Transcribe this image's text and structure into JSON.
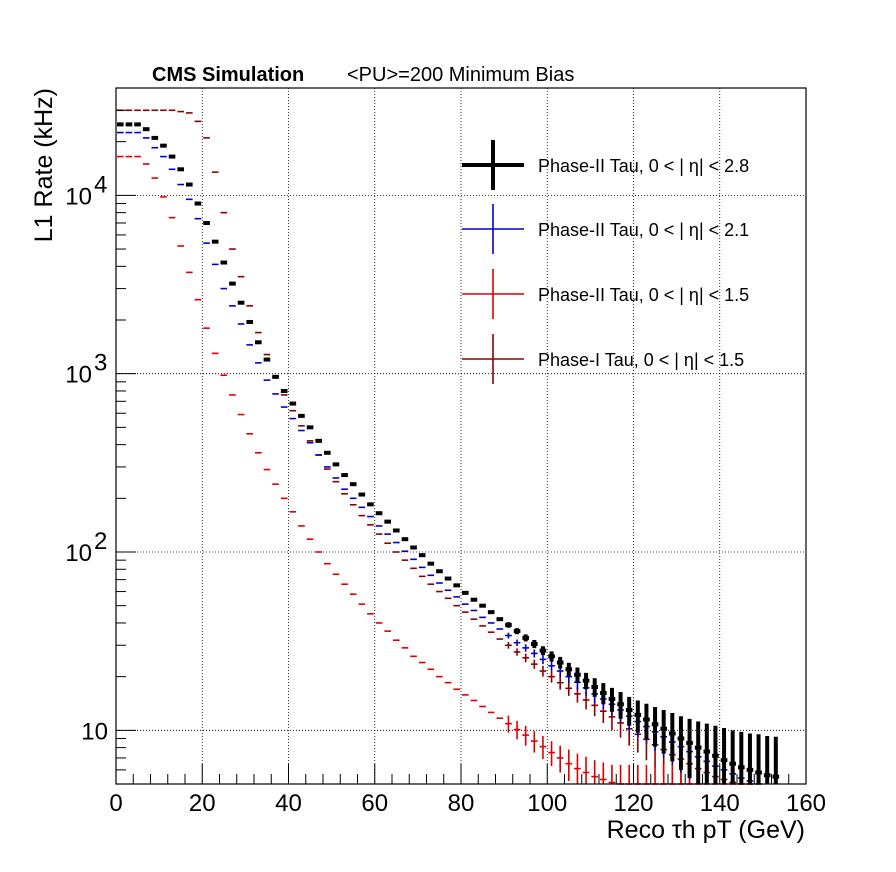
{
  "header": {
    "experiment": "CMS Simulation",
    "conditions": "<PU>=200  Minimum Bias"
  },
  "chart_data": {
    "type": "scatter",
    "xlabel": "Reco τh pT (GeV)",
    "ylabel": "L1 Rate (kHz)",
    "xlim": [
      0,
      160
    ],
    "ylim": [
      5,
      40000
    ],
    "yscale": "log",
    "grid": true,
    "legend_position": "top-right",
    "x_ticks": [
      "0",
      "20",
      "40",
      "60",
      "80",
      "100",
      "120",
      "140",
      "160"
    ],
    "y_ticks": [
      {
        "value": 10,
        "label": "10"
      },
      {
        "value": 100,
        "label": "10",
        "exp": "2"
      },
      {
        "value": 1000,
        "label": "10",
        "exp": "3"
      },
      {
        "value": 10000,
        "label": "10",
        "exp": "4"
      }
    ],
    "bin_width": 2,
    "series": [
      {
        "name": "Phase-II Tau, 0 < | η| < 2.8",
        "color": "#000000",
        "x": [
          1,
          3,
          5,
          7,
          9,
          11,
          13,
          15,
          17,
          19,
          21,
          23,
          25,
          27,
          29,
          31,
          33,
          35,
          37,
          39,
          41,
          43,
          45,
          47,
          49,
          51,
          53,
          55,
          57,
          59,
          61,
          63,
          65,
          67,
          69,
          71,
          73,
          75,
          77,
          79,
          81,
          83,
          85,
          87,
          89,
          91,
          93,
          95,
          97,
          99,
          101,
          103,
          105,
          107,
          109,
          111,
          113,
          115,
          117,
          119,
          121,
          123,
          125,
          127,
          129,
          131,
          133,
          135,
          137,
          139,
          141,
          143,
          145,
          147,
          149,
          151,
          153
        ],
        "y": [
          25000,
          25000,
          25000,
          23500,
          21000,
          19000,
          16500,
          14000,
          11500,
          9000,
          7000,
          5500,
          4200,
          3200,
          2500,
          1950,
          1500,
          1200,
          960,
          800,
          680,
          580,
          500,
          420,
          360,
          310,
          270,
          240,
          210,
          185,
          165,
          148,
          132,
          118,
          106,
          96,
          86,
          78,
          71,
          65,
          59,
          54,
          50,
          46,
          42,
          39,
          36,
          33,
          30.5,
          28,
          26,
          24,
          22,
          20.5,
          19,
          17.5,
          16.2,
          15,
          14,
          13,
          12.2,
          11.5,
          10.8,
          10.2,
          9.6,
          9.0,
          8.5,
          8.0,
          7.6,
          7.2,
          6.8,
          6.5,
          6.2,
          6.0,
          5.8,
          5.6,
          5.5
        ],
        "err": [
          0,
          0,
          0,
          0,
          0,
          0,
          0,
          0,
          0,
          0,
          0,
          0,
          0,
          0,
          0,
          0,
          0,
          0,
          0,
          0,
          0,
          0,
          0,
          0,
          0,
          0,
          0,
          0,
          0,
          0,
          0,
          0,
          0,
          0,
          0,
          0,
          0,
          0,
          0,
          0,
          0,
          0,
          0,
          0,
          0,
          1.4,
          1.4,
          1.5,
          1.6,
          1.6,
          1.7,
          1.8,
          1.9,
          2.0,
          2.0,
          2.1,
          2.2,
          2.3,
          2.4,
          2.4,
          2.5,
          2.6,
          2.7,
          2.8,
          2.9,
          3.0,
          3.1,
          3.2,
          3.3,
          3.4,
          3.5,
          3.5,
          3.6,
          3.6,
          3.7,
          3.7,
          3.7
        ]
      },
      {
        "name": "Phase-II Tau, 0 < | η| < 2.1",
        "color": "#0000cc",
        "x": [
          1,
          3,
          5,
          7,
          9,
          11,
          13,
          15,
          17,
          19,
          21,
          23,
          25,
          27,
          29,
          31,
          33,
          35,
          37,
          39,
          41,
          43,
          45,
          47,
          49,
          51,
          53,
          55,
          57,
          59,
          61,
          63,
          65,
          67,
          69,
          71,
          73,
          75,
          77,
          79,
          81,
          83,
          85,
          87,
          89,
          91,
          93,
          95,
          97,
          99,
          101,
          103,
          105,
          107,
          109,
          111,
          113,
          115,
          117,
          119,
          121,
          123,
          125,
          127,
          129,
          131,
          133,
          135,
          137,
          139,
          141,
          143,
          145,
          147,
          149
        ],
        "y": [
          22500,
          22500,
          22500,
          21000,
          18500,
          16500,
          14000,
          11500,
          9500,
          7400,
          5400,
          4100,
          3000,
          2400,
          1900,
          1450,
          1150,
          920,
          770,
          650,
          560,
          480,
          410,
          350,
          300,
          260,
          225,
          200,
          178,
          158,
          140,
          126,
          113,
          101,
          91,
          82,
          74,
          67,
          61,
          56,
          51,
          47,
          43,
          40,
          37,
          34,
          31,
          29,
          27,
          25,
          23,
          21.5,
          20,
          18.6,
          17.3,
          16,
          15,
          14,
          13,
          12,
          11.2,
          10.5,
          9.8,
          9.2,
          8.6,
          8.1,
          7.6,
          7.1,
          6.7,
          6.3,
          6.0,
          5.7,
          5.4,
          5.2,
          5.0
        ],
        "err": [
          0,
          0,
          0,
          0,
          0,
          0,
          0,
          0,
          0,
          0,
          0,
          0,
          0,
          0,
          0,
          0,
          0,
          0,
          0,
          0,
          0,
          0,
          0,
          0,
          0,
          0,
          0,
          0,
          0,
          0,
          0,
          0,
          0,
          0,
          0,
          0,
          0,
          0,
          0,
          0,
          0,
          0,
          0,
          0,
          0,
          1.3,
          1.3,
          1.4,
          1.4,
          1.5,
          1.5,
          1.6,
          1.6,
          1.7,
          1.7,
          1.8,
          1.8,
          1.9,
          1.9,
          2.0,
          2.0,
          2.1,
          2.1,
          2.2,
          2.2,
          2.3,
          2.3,
          2.4,
          2.4,
          2.5,
          2.5,
          2.5,
          2.5,
          2.5,
          2.5
        ]
      },
      {
        "name": "Phase-II Tau, 0 < | η| < 1.5",
        "color": "#e00000",
        "x": [
          1,
          3,
          5,
          7,
          9,
          11,
          13,
          15,
          17,
          19,
          21,
          23,
          25,
          27,
          29,
          31,
          33,
          35,
          37,
          39,
          41,
          43,
          45,
          47,
          49,
          51,
          53,
          55,
          57,
          59,
          61,
          63,
          65,
          67,
          69,
          71,
          73,
          75,
          77,
          79,
          81,
          83,
          85,
          87,
          89,
          91,
          93,
          95,
          97,
          99,
          101,
          103,
          105,
          107,
          109,
          111,
          113,
          115,
          117,
          119,
          121,
          123,
          125,
          127,
          129,
          131,
          133,
          135,
          137,
          139,
          141,
          143,
          145,
          147
        ],
        "y": [
          16500,
          16500,
          16500,
          15000,
          12500,
          9800,
          7500,
          5200,
          3700,
          2600,
          1800,
          1300,
          980,
          760,
          590,
          460,
          360,
          290,
          240,
          200,
          168,
          140,
          118,
          100,
          86,
          75,
          66,
          58,
          51,
          45,
          40,
          36,
          32,
          29,
          26,
          24,
          22,
          20,
          18.5,
          17,
          15.8,
          14.7,
          13.6,
          12.6,
          11.7,
          10.9,
          10.1,
          9.4,
          8.7,
          8.1,
          7.5,
          7.0,
          6.5,
          6.1,
          5.8,
          5.5,
          5.3,
          5.1,
          5.0,
          5.0,
          5.0,
          5.0,
          5.0,
          5.0,
          5.0,
          5.0,
          5.0,
          5.0,
          5.0,
          5.0,
          5.0,
          5.0,
          5.0,
          5.0
        ],
        "err": [
          0,
          0,
          0,
          0,
          0,
          0,
          0,
          0,
          0,
          0,
          0,
          0,
          0,
          0,
          0,
          0,
          0,
          0,
          0,
          0,
          0,
          0,
          0,
          0,
          0,
          0,
          0,
          0,
          0,
          0,
          0,
          0,
          0,
          0,
          0,
          0,
          0,
          0,
          0,
          0,
          0,
          0,
          0,
          0,
          0,
          1.2,
          1.2,
          1.2,
          1.2,
          1.2,
          1.2,
          1.2,
          1.3,
          1.3,
          1.3,
          1.3,
          1.3,
          1.3,
          1.4,
          1.4,
          1.4,
          1.4,
          1.4,
          1.4,
          1.5,
          1.5,
          1.5,
          1.5,
          1.5,
          1.5,
          1.5,
          1.5,
          1.5,
          1.5
        ]
      },
      {
        "name": "Phase-I Tau, 0 < | η| < 1.5",
        "color": "#8b0000",
        "x": [
          1,
          3,
          5,
          7,
          9,
          11,
          13,
          15,
          17,
          19,
          21,
          23,
          25,
          27,
          29,
          31,
          33,
          35,
          37,
          39,
          41,
          43,
          45,
          47,
          49,
          51,
          53,
          55,
          57,
          59,
          61,
          63,
          65,
          67,
          69,
          71,
          73,
          75,
          77,
          79,
          81,
          83,
          85,
          87,
          89,
          91,
          93,
          95,
          97,
          99,
          101,
          103,
          105,
          107,
          109,
          111,
          113,
          115,
          117,
          119,
          121,
          123,
          125,
          127,
          129,
          131,
          133,
          135,
          137,
          139,
          141,
          143,
          145,
          147
        ],
        "y": [
          30000,
          30000,
          30000,
          30000,
          30000,
          30000,
          30000,
          29500,
          29000,
          26000,
          21000,
          13500,
          8000,
          5000,
          3500,
          2400,
          1700,
          1280,
          960,
          760,
          620,
          510,
          420,
          350,
          292,
          248,
          212,
          184,
          160,
          142,
          126,
          112,
          100,
          90,
          81,
          73,
          66,
          60,
          55,
          50,
          46,
          42,
          38.5,
          35.5,
          32.5,
          30,
          27.5,
          25.5,
          23.5,
          21.5,
          20,
          18.5,
          17.2,
          16,
          14.8,
          13.8,
          12.8,
          11.9,
          11,
          10.2,
          9.5,
          8.9,
          8.3,
          7.8,
          7.3,
          6.9,
          6.5,
          6.1,
          5.8,
          5.5,
          5.3,
          5.1,
          5.0,
          5.0
        ],
        "err": [
          0,
          0,
          0,
          0,
          0,
          0,
          0,
          0,
          0,
          0,
          0,
          0,
          0,
          0,
          0,
          0,
          0,
          0,
          0,
          0,
          0,
          0,
          0,
          0,
          0,
          0,
          0,
          0,
          0,
          0,
          0,
          0,
          0,
          0,
          0,
          0,
          0,
          0,
          0,
          0,
          0,
          0,
          0,
          0,
          0,
          1.3,
          1.3,
          1.4,
          1.4,
          1.5,
          1.5,
          1.6,
          1.6,
          1.7,
          1.7,
          1.8,
          1.8,
          1.9,
          1.9,
          2.0,
          2.0,
          2.1,
          2.1,
          2.2,
          2.2,
          2.3,
          2.3,
          2.4,
          2.4,
          2.5,
          2.5,
          2.5,
          2.5,
          2.5
        ]
      }
    ]
  }
}
